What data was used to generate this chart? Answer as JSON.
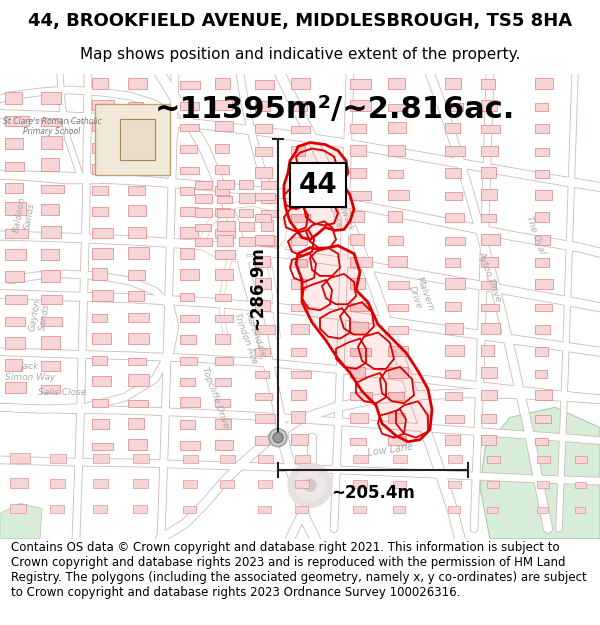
{
  "title_line1": "44, BROOKFIELD AVENUE, MIDDLESBROUGH, TS5 8HA",
  "title_line2": "Map shows position and indicative extent of the property.",
  "area_text": "~11395m²/~2.816ac.",
  "label_44": "44",
  "dim_vertical": "~286.9m",
  "dim_horizontal": "~205.4m",
  "footer_text": "Contains OS data © Crown copyright and database right 2021. This information is subject to Crown copyright and database rights 2023 and is reproduced with the permission of HM Land Registry. The polygons (including the associated geometry, namely x, y co-ordinates) are subject to Crown copyright and database rights 2023 Ordnance Survey 100026316.",
  "bg_color": "#ffffff",
  "map_bg": "#ffffff",
  "building_fill": "#f5d5d5",
  "building_edge": "#e08080",
  "highlight_edge": "#dd0000",
  "school_fill": "#f0e8d8",
  "school_edge": "#c0a070",
  "green_fill": "#d8edd8",
  "road_fill": "#ffffff",
  "road_edge": "#ccbbbb",
  "title_fontsize": 13,
  "subtitle_fontsize": 11,
  "area_fontsize": 22,
  "label_fontsize": 20,
  "dim_fontsize": 12,
  "footer_fontsize": 8.5,
  "road_label_color": "#aaaaaa",
  "road_label_size": 6.5
}
